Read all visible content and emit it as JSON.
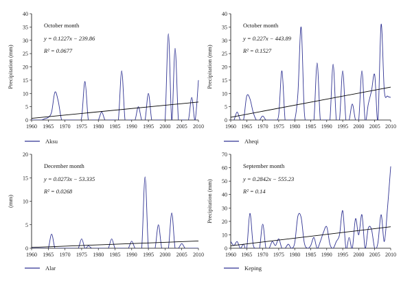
{
  "colors": {
    "series": "#2e3192",
    "trend": "#000000"
  },
  "chart_data": [
    {
      "type": "line",
      "legend_label": "Aksu",
      "ylabel": "Precipitation (mm)",
      "xlabel": "",
      "xlim": [
        1960,
        2010
      ],
      "ylim": [
        0,
        40
      ],
      "xticks": [
        1960,
        1965,
        1970,
        1975,
        1980,
        1985,
        1990,
        1995,
        2000,
        2005,
        2010
      ],
      "yticks": [
        0,
        5,
        10,
        15,
        20,
        25,
        30,
        35,
        40
      ],
      "annotation": {
        "month": "October month",
        "equation": "y = 0.1227x − 239.86",
        "r2": "R² = 0.0677"
      },
      "trend": {
        "slope": 0.1227,
        "intercept": -239.86
      },
      "series": [
        {
          "name": "Aksu",
          "x": [
            1960,
            1961,
            1962,
            1963,
            1964,
            1965,
            1966,
            1967,
            1968,
            1969,
            1970,
            1971,
            1972,
            1973,
            1974,
            1975,
            1976,
            1977,
            1978,
            1979,
            1980,
            1981,
            1982,
            1983,
            1984,
            1985,
            1986,
            1987,
            1988,
            1989,
            1990,
            1991,
            1992,
            1993,
            1994,
            1995,
            1996,
            1997,
            1998,
            1999,
            2000,
            2001,
            2002,
            2003,
            2004,
            2005,
            2006,
            2007,
            2008,
            2009,
            2010
          ],
          "y": [
            0,
            0,
            0,
            0,
            0.5,
            1,
            3,
            10.5,
            7,
            0,
            0,
            0,
            0,
            0,
            0,
            1,
            14.5,
            0,
            0,
            0,
            0,
            3,
            0,
            0,
            0,
            0,
            0,
            18.5,
            0,
            0,
            0,
            0,
            5,
            0,
            0,
            10,
            0,
            0,
            0,
            0,
            0,
            32.5,
            0,
            27,
            0,
            0,
            0,
            0,
            8.5,
            0,
            15
          ]
        }
      ]
    },
    {
      "type": "line",
      "legend_label": "Aheqi",
      "ylabel": "Precipitation (mm)",
      "xlabel": "",
      "xlim": [
        1960,
        2010
      ],
      "ylim": [
        0,
        40
      ],
      "xticks": [
        1960,
        1965,
        1970,
        1975,
        1980,
        1985,
        1990,
        1995,
        2000,
        2005,
        2010
      ],
      "yticks": [
        0,
        5,
        10,
        15,
        20,
        25,
        30,
        35,
        40
      ],
      "annotation": {
        "month": "October month",
        "equation": "y = 0.227x − 443.89",
        "r2": "R² = 0.1527"
      },
      "trend": {
        "slope": 0.227,
        "intercept": -443.89
      },
      "series": [
        {
          "name": "Aheqi",
          "x": [
            1960,
            1961,
            1962,
            1963,
            1964,
            1965,
            1966,
            1967,
            1968,
            1969,
            1970,
            1971,
            1972,
            1973,
            1974,
            1975,
            1976,
            1977,
            1978,
            1979,
            1980,
            1981,
            1982,
            1983,
            1984,
            1985,
            1986,
            1987,
            1988,
            1989,
            1990,
            1991,
            1992,
            1993,
            1994,
            1995,
            1996,
            1997,
            1998,
            1999,
            2000,
            2001,
            2002,
            2003,
            2004,
            2005,
            2006,
            2007,
            2008,
            2009,
            2010
          ],
          "y": [
            0,
            0,
            3,
            0,
            0,
            9,
            8,
            3,
            0,
            0,
            1.5,
            0,
            0,
            0,
            0,
            2,
            18.5,
            0,
            0,
            0,
            0,
            10,
            35,
            3,
            0,
            0,
            0,
            21.5,
            0,
            0,
            0,
            0,
            21,
            0,
            0,
            18.5,
            0,
            0,
            6,
            0,
            0,
            18.5,
            0,
            6,
            11,
            17,
            0,
            36,
            11,
            9,
            8.5
          ]
        }
      ]
    },
    {
      "type": "line",
      "legend_label": "Alar",
      "ylabel": "(mm)",
      "xlabel": "",
      "xlim": [
        1960,
        2010
      ],
      "ylim": [
        0,
        20
      ],
      "xticks": [
        1960,
        1965,
        1970,
        1975,
        1980,
        1985,
        1990,
        1995,
        2000,
        2005,
        2010
      ],
      "yticks": [
        0,
        5,
        10,
        15,
        20
      ],
      "annotation": {
        "month": "December month",
        "equation": "y = 0.0273x − 53.335",
        "r2": "R² = 0.0268"
      },
      "trend": {
        "slope": 0.0273,
        "intercept": -53.335
      },
      "series": [
        {
          "name": "Alar",
          "x": [
            1960,
            1961,
            1962,
            1963,
            1964,
            1965,
            1966,
            1967,
            1968,
            1969,
            1970,
            1971,
            1972,
            1973,
            1974,
            1975,
            1976,
            1977,
            1978,
            1979,
            1980,
            1981,
            1982,
            1983,
            1984,
            1985,
            1986,
            1987,
            1988,
            1989,
            1990,
            1991,
            1992,
            1993,
            1994,
            1995,
            1996,
            1997,
            1998,
            1999,
            2000,
            2001,
            2002,
            2003,
            2004,
            2005,
            2006,
            2007,
            2008,
            2009,
            2010
          ],
          "y": [
            0,
            0,
            0,
            0,
            0,
            0,
            3,
            0,
            0,
            0,
            0,
            0,
            0,
            0,
            0,
            2,
            0,
            0.5,
            0,
            0,
            0,
            0,
            0,
            0,
            2,
            0,
            0,
            0,
            0,
            0,
            1.5,
            0,
            0,
            0,
            15.2,
            0,
            0,
            0,
            5,
            0,
            0,
            0,
            7.5,
            0,
            0,
            1,
            0,
            0,
            0,
            0,
            0
          ]
        }
      ]
    },
    {
      "type": "line",
      "legend_label": "Keping",
      "ylabel": "Precipitation (mm)",
      "xlabel": "",
      "xlim": [
        1960,
        2010
      ],
      "ylim": [
        0,
        70
      ],
      "xticks": [
        1960,
        1965,
        1970,
        1975,
        1980,
        1985,
        1990,
        1995,
        2000,
        2005,
        2010
      ],
      "yticks": [
        0,
        10,
        20,
        30,
        40,
        50,
        60,
        70
      ],
      "annotation": {
        "month": "September month",
        "equation": "y = 0.2842x − 555.23",
        "r2": "R² = 0.14"
      },
      "trend": {
        "slope": 0.2842,
        "intercept": -555.23
      },
      "series": [
        {
          "name": "Keping",
          "x": [
            1960,
            1961,
            1962,
            1963,
            1964,
            1965,
            1966,
            1967,
            1968,
            1969,
            1970,
            1971,
            1972,
            1973,
            1974,
            1975,
            1976,
            1977,
            1978,
            1979,
            1980,
            1981,
            1982,
            1983,
            1984,
            1985,
            1986,
            1987,
            1988,
            1989,
            1990,
            1991,
            1992,
            1993,
            1994,
            1995,
            1996,
            1997,
            1998,
            1999,
            2000,
            2001,
            2002,
            2003,
            2004,
            2005,
            2006,
            2007,
            2008,
            2009,
            2010
          ],
          "y": [
            5,
            2,
            5,
            0,
            3,
            0,
            26,
            3,
            0,
            0,
            18,
            0,
            0,
            5,
            2,
            7,
            0,
            0,
            3,
            0,
            4,
            24,
            23,
            4,
            0,
            2,
            8,
            0,
            5,
            12,
            16,
            3,
            0,
            5,
            10,
            28,
            0,
            8,
            0,
            22,
            10,
            25,
            0,
            15,
            14,
            0,
            4,
            25,
            5,
            30,
            61
          ]
        }
      ]
    }
  ]
}
